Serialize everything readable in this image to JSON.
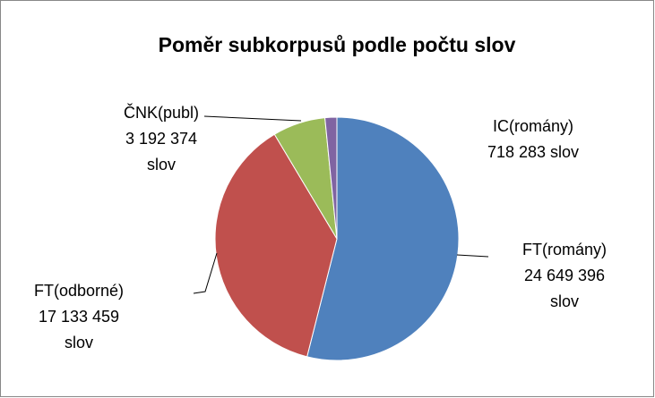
{
  "chart_data": {
    "type": "pie",
    "title": "Poměr subkorpusů podle počtu slov",
    "categories": [
      "FT(romány)",
      "FT(odborné)",
      "ČNK(publ)",
      "IC(romány)"
    ],
    "values": [
      24649396,
      17133459,
      3192374,
      718283
    ],
    "value_labels": [
      "24 649 396 slov",
      "17 133 459 slov",
      "3 192 374 slov",
      "718 283 slov"
    ],
    "colors": [
      "#4f81bd",
      "#c0504d",
      "#9bbb59",
      "#8064a2"
    ]
  }
}
